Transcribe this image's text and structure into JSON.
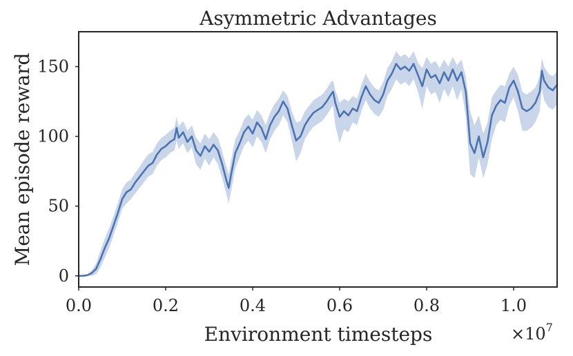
{
  "chart_data": {
    "type": "line",
    "title": "Asymmetric Advantages",
    "xlabel": "Environment timesteps",
    "ylabel": "Mean episode reward",
    "x_multiplier": "×10",
    "x_multiplier_exp": "7",
    "xlim": [
      0.0,
      1.1
    ],
    "ylim": [
      -8,
      175
    ],
    "x_ticks": [
      0.0,
      0.2,
      0.4,
      0.6,
      0.8,
      1.0
    ],
    "x_tick_labels": [
      "0.0",
      "0.2",
      "0.4",
      "0.6",
      "0.8",
      "1.0"
    ],
    "y_ticks": [
      0,
      50,
      100,
      150
    ],
    "y_tick_labels": [
      "0",
      "50",
      "100",
      "150"
    ],
    "grid": false,
    "legend": "none",
    "colors": {
      "line": "#4c72b0",
      "band": "#c9d6ea"
    },
    "series": [
      {
        "points": [
          [
            0.0,
            0,
            0,
            0
          ],
          [
            0.01,
            0,
            0,
            0
          ],
          [
            0.02,
            0.5,
            0,
            1
          ],
          [
            0.03,
            2,
            0,
            4
          ],
          [
            0.04,
            5,
            1,
            9
          ],
          [
            0.05,
            12,
            6,
            18
          ],
          [
            0.06,
            20,
            13,
            27
          ],
          [
            0.07,
            27,
            20,
            34
          ],
          [
            0.08,
            36,
            29,
            43
          ],
          [
            0.09,
            45,
            38,
            52
          ],
          [
            0.1,
            55,
            48,
            62
          ],
          [
            0.11,
            60,
            52,
            67
          ],
          [
            0.12,
            62,
            55,
            69
          ],
          [
            0.13,
            67,
            59,
            74
          ],
          [
            0.14,
            71,
            63,
            78
          ],
          [
            0.15,
            75,
            67,
            83
          ],
          [
            0.16,
            79,
            71,
            87
          ],
          [
            0.17,
            81,
            73,
            89
          ],
          [
            0.18,
            87,
            79,
            95
          ],
          [
            0.19,
            91,
            83,
            99
          ],
          [
            0.2,
            93,
            85,
            101
          ],
          [
            0.21,
            96,
            88,
            104
          ],
          [
            0.22,
            98,
            90,
            106
          ],
          [
            0.225,
            106,
            97,
            114
          ],
          [
            0.23,
            99,
            91,
            107
          ],
          [
            0.24,
            103,
            95,
            111
          ],
          [
            0.25,
            96,
            88,
            104
          ],
          [
            0.26,
            100,
            92,
            108
          ],
          [
            0.27,
            90,
            80,
            99
          ],
          [
            0.28,
            86,
            76,
            95
          ],
          [
            0.29,
            93,
            84,
            102
          ],
          [
            0.3,
            89,
            79,
            98
          ],
          [
            0.31,
            94,
            85,
            103
          ],
          [
            0.32,
            90,
            80,
            99
          ],
          [
            0.33,
            80,
            70,
            89
          ],
          [
            0.34,
            68,
            58,
            78
          ],
          [
            0.345,
            63,
            52,
            73
          ],
          [
            0.35,
            72,
            60,
            82
          ],
          [
            0.36,
            88,
            77,
            98
          ],
          [
            0.37,
            95,
            85,
            104
          ],
          [
            0.38,
            103,
            93,
            112
          ],
          [
            0.39,
            107,
            97,
            116
          ],
          [
            0.4,
            102,
            92,
            112
          ],
          [
            0.41,
            110,
            100,
            119
          ],
          [
            0.42,
            106,
            96,
            115
          ],
          [
            0.43,
            98,
            88,
            108
          ],
          [
            0.44,
            108,
            98,
            117
          ],
          [
            0.45,
            114,
            104,
            123
          ],
          [
            0.46,
            118,
            108,
            127
          ],
          [
            0.47,
            125,
            115,
            133
          ],
          [
            0.48,
            120,
            110,
            129
          ],
          [
            0.49,
            108,
            97,
            118
          ],
          [
            0.5,
            97,
            82,
            110
          ],
          [
            0.51,
            100,
            88,
            111
          ],
          [
            0.52,
            108,
            98,
            118
          ],
          [
            0.53,
            113,
            103,
            122
          ],
          [
            0.54,
            117,
            107,
            126
          ],
          [
            0.55,
            119,
            109,
            128
          ],
          [
            0.56,
            121,
            111,
            130
          ],
          [
            0.57,
            125,
            115,
            134
          ],
          [
            0.58,
            130,
            120,
            139
          ],
          [
            0.585,
            132,
            122,
            140
          ],
          [
            0.59,
            124,
            108,
            133
          ],
          [
            0.6,
            114,
            95,
            124
          ],
          [
            0.61,
            118,
            105,
            127
          ],
          [
            0.62,
            115,
            103,
            125
          ],
          [
            0.63,
            120,
            110,
            129
          ],
          [
            0.64,
            118,
            108,
            127
          ],
          [
            0.65,
            128,
            118,
            137
          ],
          [
            0.66,
            136,
            126,
            145
          ],
          [
            0.67,
            130,
            120,
            139
          ],
          [
            0.68,
            126,
            116,
            135
          ],
          [
            0.69,
            124,
            114,
            133
          ],
          [
            0.7,
            130,
            119,
            139
          ],
          [
            0.71,
            140,
            129,
            149
          ],
          [
            0.72,
            145,
            134,
            154
          ],
          [
            0.73,
            152,
            141,
            161
          ],
          [
            0.74,
            148,
            137,
            157
          ],
          [
            0.75,
            150,
            139,
            159
          ],
          [
            0.76,
            147,
            136,
            156
          ],
          [
            0.77,
            152,
            141,
            161
          ],
          [
            0.78,
            144,
            132,
            153
          ],
          [
            0.79,
            136,
            120,
            149
          ],
          [
            0.8,
            148,
            136,
            157
          ],
          [
            0.81,
            142,
            130,
            152
          ],
          [
            0.82,
            144,
            132,
            154
          ],
          [
            0.83,
            138,
            124,
            149
          ],
          [
            0.84,
            146,
            134,
            155
          ],
          [
            0.85,
            140,
            128,
            150
          ],
          [
            0.86,
            148,
            136,
            157
          ],
          [
            0.87,
            140,
            126,
            151
          ],
          [
            0.88,
            146,
            134,
            155
          ],
          [
            0.89,
            132,
            114,
            143
          ],
          [
            0.9,
            95,
            73,
            118
          ],
          [
            0.91,
            88,
            70,
            108
          ],
          [
            0.92,
            100,
            85,
            115
          ],
          [
            0.93,
            85,
            70,
            102
          ],
          [
            0.94,
            96,
            80,
            110
          ],
          [
            0.95,
            115,
            98,
            128
          ],
          [
            0.96,
            122,
            108,
            133
          ],
          [
            0.97,
            126,
            112,
            137
          ],
          [
            0.98,
            124,
            110,
            136
          ],
          [
            0.99,
            135,
            122,
            145
          ],
          [
            1.0,
            140,
            128,
            150
          ],
          [
            1.01,
            132,
            118,
            144
          ],
          [
            1.02,
            120,
            104,
            132
          ],
          [
            1.03,
            118,
            104,
            130
          ],
          [
            1.04,
            120,
            106,
            132
          ],
          [
            1.05,
            124,
            110,
            135
          ],
          [
            1.06,
            132,
            118,
            143
          ],
          [
            1.065,
            147,
            134,
            156
          ],
          [
            1.07,
            140,
            126,
            150
          ],
          [
            1.08,
            135,
            121,
            145
          ],
          [
            1.09,
            133,
            119,
            143
          ],
          [
            1.1,
            137,
            123,
            147
          ]
        ]
      }
    ]
  }
}
